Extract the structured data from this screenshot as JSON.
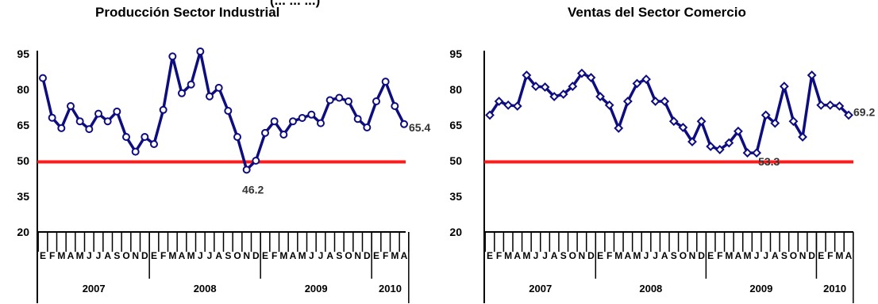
{
  "header_fragment": "(... ... ...)",
  "chart_data": [
    {
      "type": "line",
      "title": "Producción Sector Industrial",
      "ylim": [
        20,
        95
      ],
      "yticks": [
        "20",
        "35",
        "50",
        "65",
        "80",
        "95"
      ],
      "months": [
        "E",
        "F",
        "M",
        "A",
        "M",
        "J",
        "J",
        "A",
        "S",
        "O",
        "N",
        "D",
        "E",
        "F",
        "M",
        "A",
        "M",
        "J",
        "J",
        "A",
        "S",
        "O",
        "N",
        "D",
        "E",
        "F",
        "M",
        "A",
        "M",
        "J",
        "J",
        "A",
        "S",
        "O",
        "N",
        "D",
        "E",
        "F",
        "M",
        "A"
      ],
      "years": [
        "2007",
        "2008",
        "2009",
        "2010"
      ],
      "values": [
        84.8,
        68.1,
        63.7,
        73.0,
        66.6,
        63.3,
        69.8,
        66.6,
        70.7,
        60.0,
        53.8,
        60.0,
        57.0,
        71.4,
        93.9,
        78.4,
        82.1,
        96.0,
        77.1,
        80.7,
        71.0,
        60.0,
        46.2,
        50.0,
        61.7,
        66.6,
        61.0,
        66.6,
        68.0,
        69.4,
        65.8,
        75.5,
        76.5,
        75.0,
        67.6,
        64.0,
        75.0,
        83.3,
        73.0,
        65.4
      ],
      "threshold": 49.5,
      "threshold_color": "#ff1a1a",
      "line_color": "#0d0d80",
      "label_min": "46.2",
      "label_last": "65.4",
      "grid": false
    },
    {
      "type": "line",
      "title": "Ventas del Sector Comercio",
      "ylim": [
        20,
        95
      ],
      "yticks": [
        "20",
        "35",
        "50",
        "65",
        "80",
        "95"
      ],
      "months": [
        "E",
        "F",
        "M",
        "A",
        "M",
        "J",
        "J",
        "A",
        "S",
        "O",
        "N",
        "D",
        "E",
        "F",
        "M",
        "A",
        "M",
        "J",
        "J",
        "A",
        "S",
        "O",
        "N",
        "D",
        "E",
        "F",
        "M",
        "A",
        "M",
        "J",
        "J",
        "A",
        "S",
        "O",
        "N",
        "D",
        "E",
        "F",
        "M",
        "A"
      ],
      "years": [
        "2007",
        "2008",
        "2009",
        "2010"
      ],
      "values": [
        69.2,
        75.0,
        73.4,
        73.0,
        86.0,
        81.3,
        81.0,
        77.0,
        78.0,
        81.3,
        86.8,
        85.0,
        77.0,
        73.4,
        63.7,
        75.0,
        82.5,
        84.3,
        75.0,
        75.0,
        66.6,
        64.0,
        58.0,
        66.6,
        56.0,
        54.7,
        57.5,
        62.4,
        53.3,
        53.3,
        69.2,
        65.8,
        81.3,
        66.6,
        60.0,
        86.0,
        73.4,
        73.4,
        73.0,
        69.2
      ],
      "threshold": 49.5,
      "threshold_color": "#ff1a1a",
      "line_color": "#0d0d80",
      "label_min": "53.3",
      "label_last": "69.2",
      "grid": false
    }
  ]
}
